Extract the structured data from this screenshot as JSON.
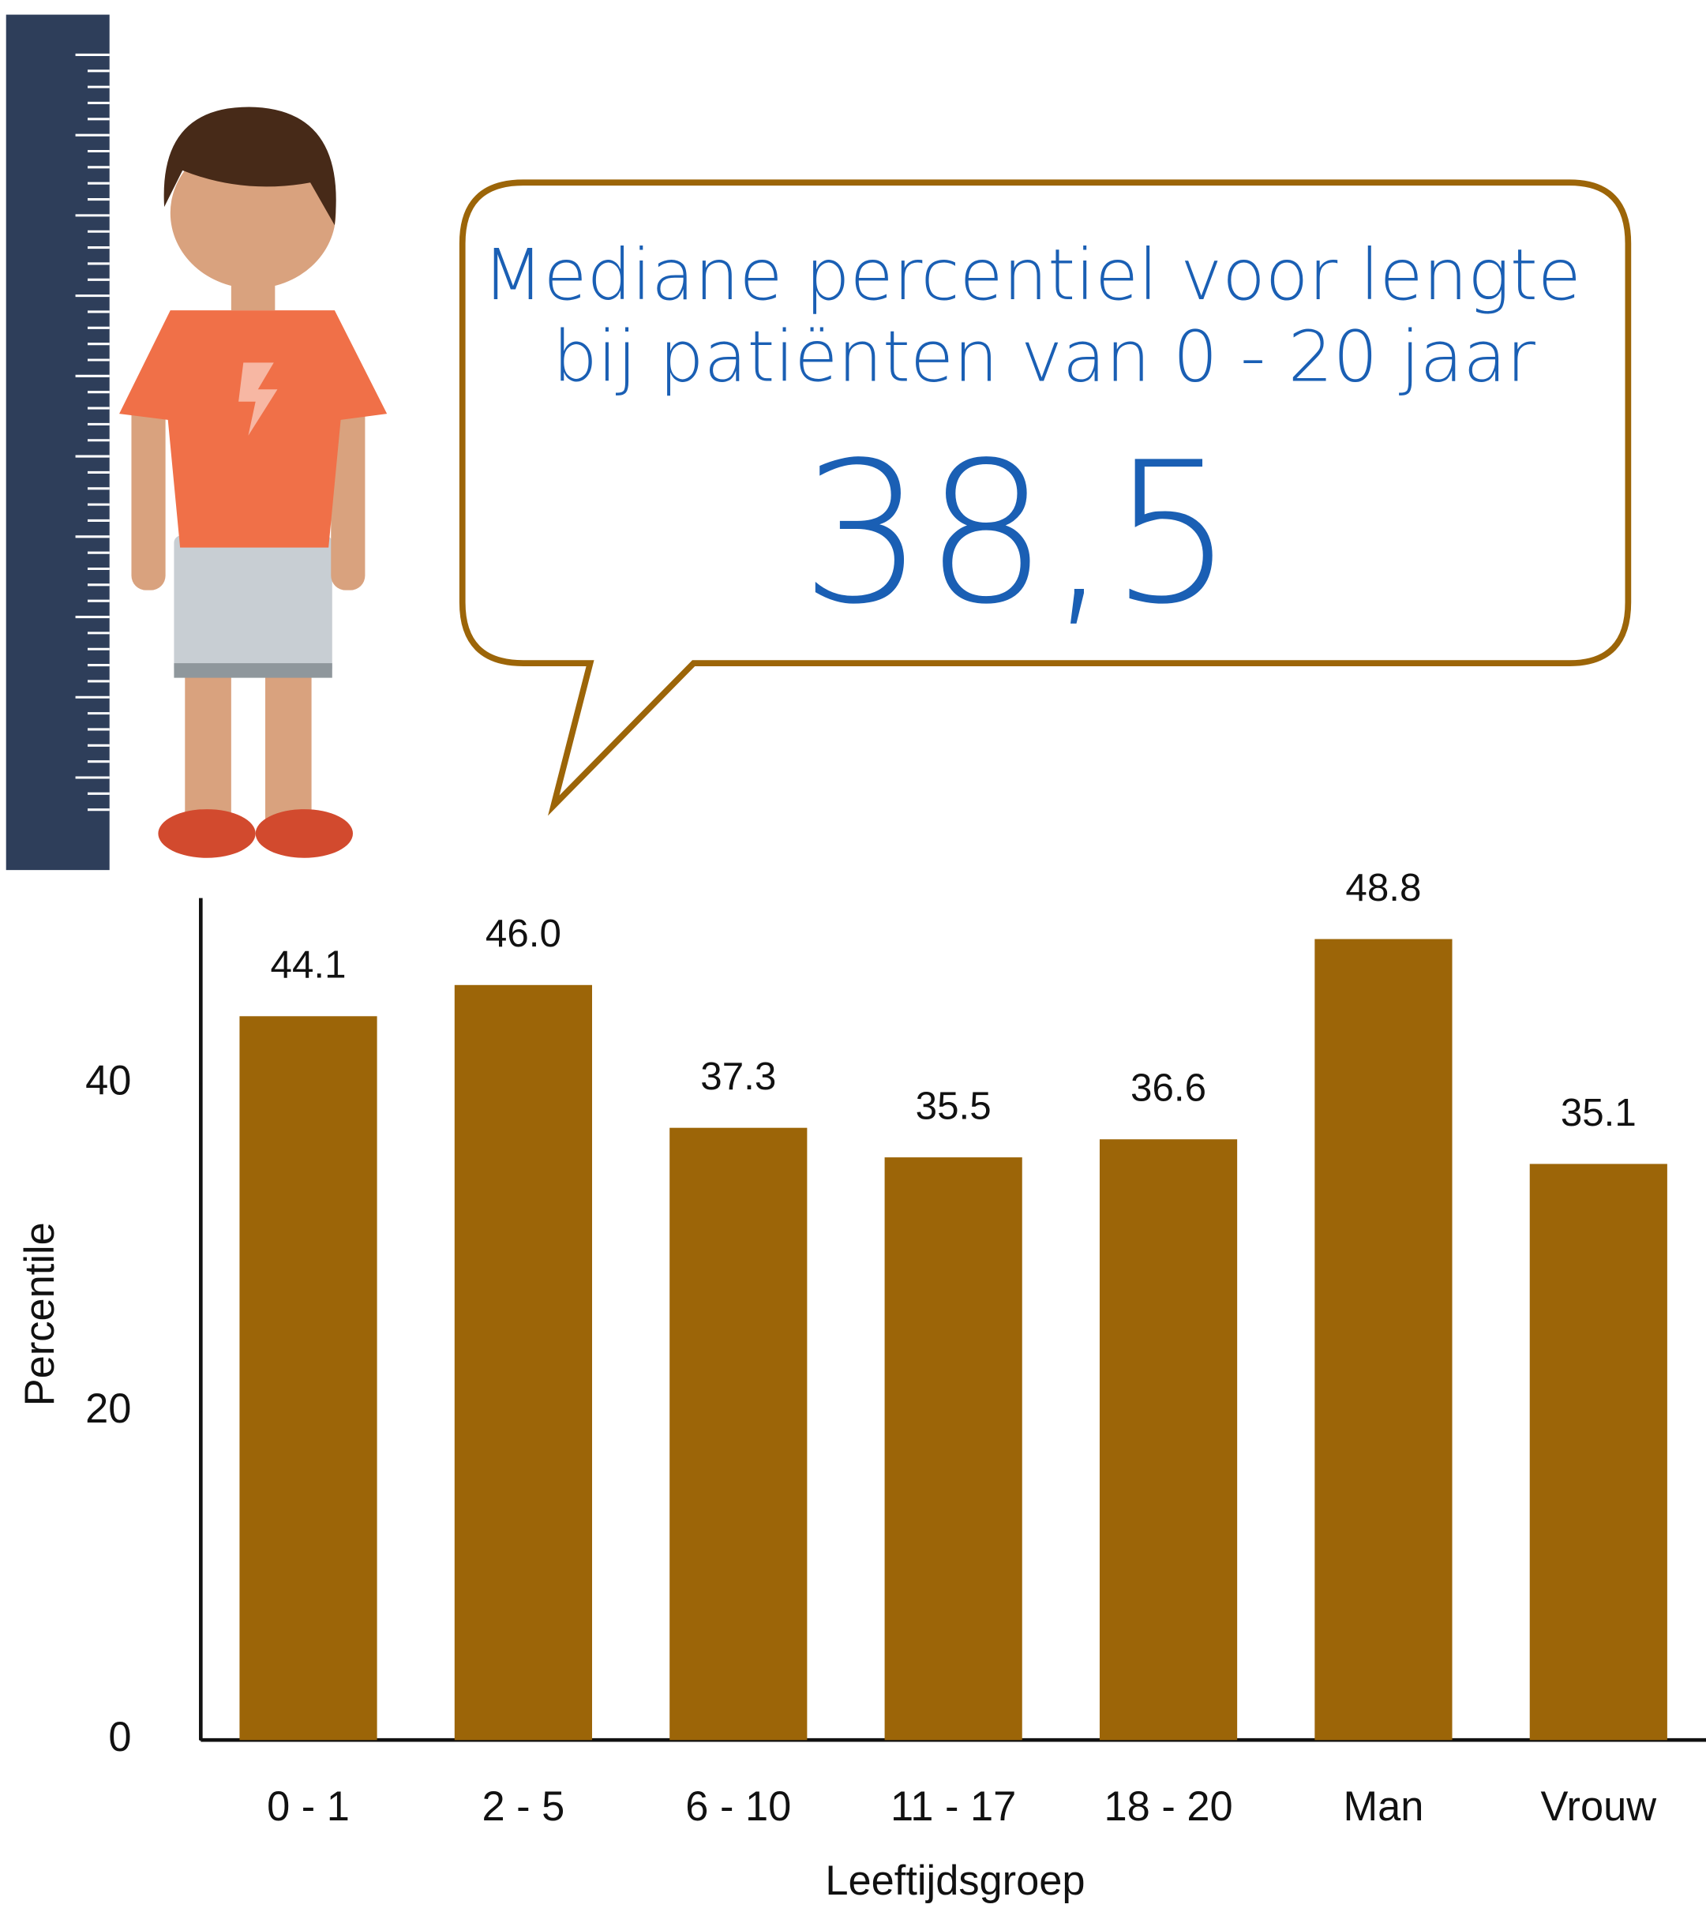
{
  "callout": {
    "lines": [
      "Mediane percentiel voor lengte",
      "bij patiënten van 0 - 20 jaar"
    ],
    "value": "38,5"
  },
  "chart_data": {
    "type": "bar",
    "categories": [
      "0 - 1",
      "2 - 5",
      "6 - 10",
      "11 - 17",
      "18 - 20",
      "Man",
      "Vrouw"
    ],
    "values": [
      44.1,
      46.0,
      37.3,
      35.5,
      36.6,
      48.8,
      35.1
    ],
    "value_labels": [
      "44.1",
      "46.0",
      "37.3",
      "35.5",
      "36.6",
      "48.8",
      "35.1"
    ],
    "color": "#9c6508",
    "x_label": "Leeftijdsgroep",
    "y_label": "Percentile",
    "ylim": [
      0,
      51.3
    ],
    "yticks": [
      0,
      20,
      40
    ],
    "grid": false
  }
}
